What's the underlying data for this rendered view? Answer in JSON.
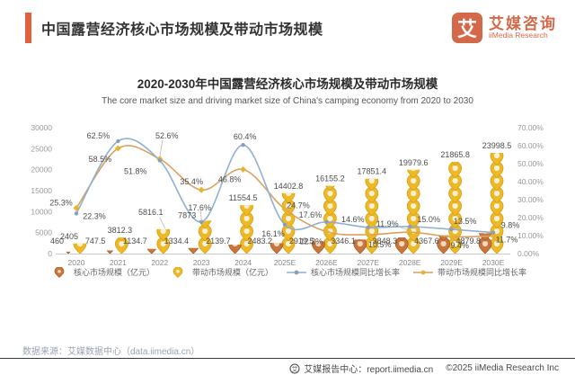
{
  "header": {
    "title": "中国露营经济核心市场规模及带动市场规模",
    "logo": {
      "mark": "艾",
      "name_cn": "艾媒咨询",
      "name_en": "iiMedia Research"
    }
  },
  "chart": {
    "title": "2020-2030年中国露营经济核心市场规模及带动市场规模",
    "subtitle": "The core market size and driving market size of China's camping economy from 2020 to 2030"
  },
  "chart_data": {
    "type": "combo: pictograph-bar + line",
    "categories": [
      "2020",
      "2021",
      "2022",
      "2023",
      "2024",
      "2025E",
      "2026E",
      "2027E",
      "2028E",
      "2029E",
      "2030E"
    ],
    "series": [
      {
        "name": "核心市场规模（亿元）",
        "kind": "pictograph-bar",
        "axis": "left",
        "values": [
          460,
          747.5,
          1134.7,
          1334.4,
          2139.7,
          2483.2,
          2919.5,
          3346.1,
          3848.3,
          4367.6,
          4879.8
        ]
      },
      {
        "name": "带动市场规模（亿元）",
        "kind": "pictograph-bar",
        "axis": "left",
        "values": [
          2405,
          3812.3,
          5816.1,
          7873,
          11554.5,
          14402.8,
          16155.2,
          17851.4,
          19979.6,
          21865.8,
          23998.5
        ]
      },
      {
        "name": "核心市场规模同比增长率",
        "kind": "line",
        "axis": "right",
        "values_pct": [
          22.3,
          62.5,
          51.8,
          17.6,
          60.4,
          16.1,
          17.6,
          14.6,
          15.0,
          13.5,
          11.7
        ]
      },
      {
        "name": "带动市场规模同比增长率",
        "kind": "line",
        "axis": "right",
        "values_pct": [
          25.3,
          58.5,
          52.6,
          35.4,
          46.8,
          24.7,
          12.2,
          10.5,
          11.9,
          9.4,
          9.8
        ]
      }
    ],
    "left_axis": {
      "min": 0,
      "max": 30000,
      "step": 5000
    },
    "right_axis": {
      "min": 0,
      "max": 70,
      "step": 10,
      "suffix": "%",
      "decimals": 2
    },
    "grid": false,
    "legend_position": "bottom",
    "colors": {
      "accent": "#E2603C",
      "core_pin": "#C8763B",
      "core_pin_stroke": "#A85A28",
      "core_pin_inner": "#F3D9C2",
      "driving_pin": "#EDBA25",
      "driving_pin_stroke": "#D89E15",
      "driving_pin_inner": "#FCF0D8",
      "core_line": "#8FB0D1",
      "core_marker": "#8A9DBE",
      "driving_line": "#DCA05C",
      "driving_marker": "#E4B42F",
      "axis_text": "#999999",
      "label_text": "#4d4d4d"
    }
  },
  "source_note": "数据来源：艾媒数据中心（data.iimedia.cn）",
  "footer": {
    "icon": "艾",
    "report_center": "艾媒报告中心：report.iimedia.cn",
    "copyright": "©2025   iiMedia Research Inc"
  }
}
